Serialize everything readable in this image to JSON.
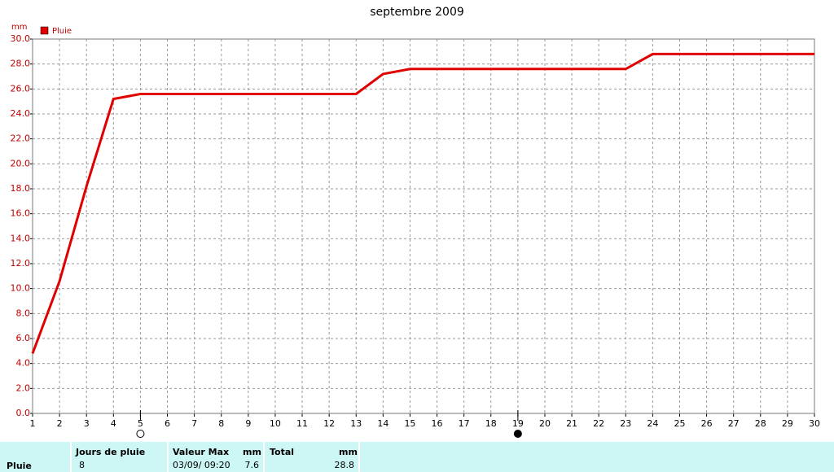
{
  "chart_data": {
    "type": "line",
    "title": "septembre 2009",
    "y_label": "mm",
    "x": [
      1,
      2,
      3,
      4,
      5,
      6,
      7,
      8,
      9,
      10,
      11,
      12,
      13,
      14,
      15,
      16,
      17,
      18,
      19,
      20,
      21,
      22,
      23,
      24,
      25,
      26,
      27,
      28,
      29,
      30
    ],
    "series": [
      {
        "name": "Pluie",
        "color": "#e00000",
        "values": [
          4.8,
          10.6,
          18.2,
          25.2,
          25.6,
          25.6,
          25.6,
          25.6,
          25.6,
          25.6,
          25.6,
          25.6,
          25.6,
          27.2,
          27.6,
          27.6,
          27.6,
          27.6,
          27.6,
          27.6,
          27.6,
          27.6,
          27.6,
          28.8,
          28.8,
          28.8,
          28.8,
          28.8,
          28.8,
          28.8
        ]
      }
    ],
    "xlim": [
      1,
      30
    ],
    "xticks": [
      1,
      2,
      3,
      4,
      5,
      6,
      7,
      8,
      9,
      10,
      11,
      12,
      13,
      14,
      15,
      16,
      17,
      18,
      19,
      20,
      21,
      22,
      23,
      24,
      25,
      26,
      27,
      28,
      29,
      30
    ],
    "ylim": [
      0,
      30
    ],
    "yticks": [
      {
        "value": 0,
        "label": "0.0"
      },
      {
        "value": 2,
        "label": "2.0"
      },
      {
        "value": 4,
        "label": "4.0"
      },
      {
        "value": 6,
        "label": "6.0"
      },
      {
        "value": 8,
        "label": "8.0"
      },
      {
        "value": 10,
        "label": "10.0"
      },
      {
        "value": 12,
        "label": "12.0"
      },
      {
        "value": 14,
        "label": "14.0"
      },
      {
        "value": 16,
        "label": "16.0"
      },
      {
        "value": 18,
        "label": "18.0"
      },
      {
        "value": 20,
        "label": "20.0"
      },
      {
        "value": 22,
        "label": "22.0"
      },
      {
        "value": 24,
        "label": "24.0"
      },
      {
        "value": 26,
        "label": "26.0"
      },
      {
        "value": 28,
        "label": "28.0"
      },
      {
        "value": 30,
        "label": "30.0"
      }
    ],
    "grid": true,
    "markers": [
      {
        "x": 5,
        "filled": false
      },
      {
        "x": 19,
        "filled": true
      }
    ]
  },
  "table": {
    "headers": [
      "Jours de pluie",
      "Valeur Max",
      "mm",
      "Total",
      "mm"
    ],
    "row": {
      "label": "Pluie",
      "days": 8,
      "max_date": "03/09/ 09:20",
      "max_value": 7.6,
      "total": 28.8
    }
  }
}
